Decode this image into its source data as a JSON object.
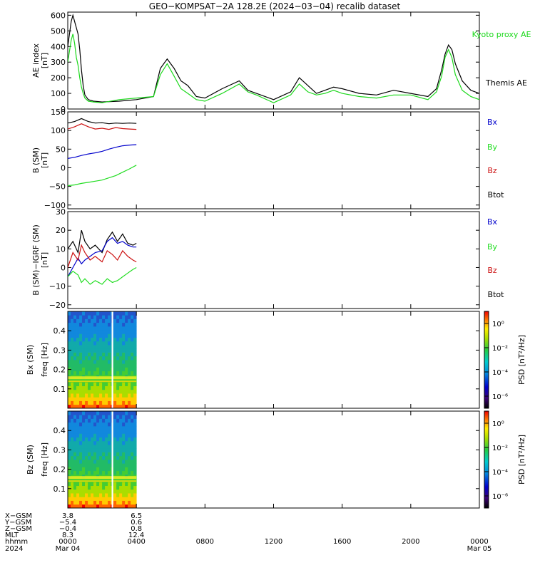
{
  "title": "GEO−KOMPSAT−2A 128.2E (2024−03−04) recalib dataset",
  "chart_data": [
    {
      "type": "line",
      "panel": "ae-index",
      "ylabel": "AE index",
      "yunit": "[nT]",
      "ylim": [
        0,
        620
      ],
      "yticks": [
        "0",
        "100",
        "200",
        "300",
        "400",
        "500",
        "600"
      ],
      "ytick_values": [
        0,
        100,
        200,
        300,
        400,
        500,
        600
      ],
      "series": [
        {
          "name": "Themis AE",
          "color": "#000000",
          "x": [
            0,
            0.1,
            0.2,
            0.3,
            0.4,
            0.5,
            0.6,
            0.7,
            0.8,
            0.9,
            1.0,
            1.2,
            1.5,
            2.0,
            3.0,
            4.0,
            5.0,
            5.4,
            5.8,
            6.2,
            6.6,
            7.0,
            7.5,
            8.0,
            9.0,
            10.0,
            10.5,
            11.0,
            12.0,
            13.0,
            13.5,
            14.0,
            14.5,
            15.0,
            15.5,
            16.0,
            17.0,
            18.0,
            19.0,
            20.0,
            21.0,
            21.5,
            21.8,
            22.0,
            22.2,
            22.4,
            22.6,
            23.0,
            23.5,
            24.0
          ],
          "y": [
            400,
            480,
            560,
            600,
            560,
            520,
            480,
            380,
            250,
            150,
            90,
            60,
            50,
            45,
            50,
            60,
            80,
            260,
            320,
            260,
            180,
            150,
            80,
            70,
            130,
            180,
            120,
            100,
            60,
            110,
            200,
            150,
            100,
            120,
            140,
            130,
            100,
            90,
            120,
            100,
            80,
            130,
            250,
            350,
            410,
            380,
            290,
            180,
            120,
            100
          ]
        },
        {
          "name": "Kyoto proxy AE",
          "color": "#1bd81b",
          "x": [
            0,
            0.1,
            0.2,
            0.3,
            0.4,
            0.5,
            0.6,
            0.7,
            0.8,
            0.9,
            1.0,
            1.2,
            1.5,
            2.0,
            3.0,
            4.0,
            5.0,
            5.4,
            5.8,
            6.2,
            6.6,
            7.0,
            7.5,
            8.0,
            9.0,
            10.0,
            10.5,
            11.0,
            12.0,
            13.0,
            13.5,
            14.0,
            14.5,
            15.0,
            15.5,
            16.0,
            17.0,
            18.0,
            19.0,
            20.0,
            21.0,
            21.5,
            21.8,
            22.0,
            22.2,
            22.4,
            22.6,
            23.0,
            23.5,
            24.0
          ],
          "y": [
            300,
            370,
            440,
            480,
            420,
            330,
            280,
            200,
            140,
            100,
            70,
            50,
            45,
            40,
            60,
            70,
            80,
            220,
            290,
            210,
            130,
            100,
            60,
            50,
            100,
            160,
            110,
            90,
            40,
            90,
            160,
            110,
            90,
            100,
            120,
            100,
            80,
            70,
            90,
            90,
            60,
            110,
            210,
            330,
            380,
            330,
            220,
            120,
            80,
            60
          ]
        }
      ]
    },
    {
      "type": "line",
      "panel": "b-sm",
      "ylabel": "B (SM)",
      "yunit": "[nT]",
      "ylim": [
        -110,
        150
      ],
      "yticks": [
        "−100",
        "−50",
        "0",
        "50",
        "100",
        "150"
      ],
      "ytick_values": [
        -100,
        -50,
        0,
        50,
        100,
        150
      ],
      "series": [
        {
          "name": "Btot",
          "color": "#000000",
          "x": [
            0,
            0.4,
            0.8,
            1.2,
            1.6,
            2.0,
            2.4,
            2.8,
            3.2,
            3.6,
            4.0
          ],
          "y": [
            120,
            124,
            132,
            124,
            120,
            121,
            118,
            120,
            119,
            120,
            119
          ]
        },
        {
          "name": "Bx",
          "color": "#0000cc",
          "x": [
            0,
            0.4,
            0.8,
            1.2,
            1.6,
            2.0,
            2.4,
            2.8,
            3.2,
            3.6,
            4.0
          ],
          "y": [
            25,
            28,
            33,
            37,
            40,
            44,
            50,
            55,
            59,
            61,
            62
          ]
        },
        {
          "name": "By",
          "color": "#22dd22",
          "x": [
            0,
            0.4,
            0.8,
            1.2,
            1.6,
            2.0,
            2.4,
            2.8,
            3.2,
            3.6,
            4.0
          ],
          "y": [
            -48,
            -46,
            -42,
            -39,
            -36,
            -33,
            -27,
            -21,
            -12,
            -3,
            7
          ]
        },
        {
          "name": "Bz",
          "color": "#cc1111",
          "x": [
            0,
            0.4,
            0.8,
            1.2,
            1.6,
            2.0,
            2.4,
            2.8,
            3.2,
            3.6,
            4.0
          ],
          "y": [
            104,
            110,
            118,
            110,
            104,
            106,
            103,
            108,
            105,
            104,
            103
          ]
        }
      ]
    },
    {
      "type": "line",
      "panel": "b-sm-igrf",
      "ylabel": "B (SM)−IGRF (SM)",
      "yunit": "[nT]",
      "ylim": [
        -22,
        30
      ],
      "yticks": [
        "−20",
        "−10",
        "0",
        "10",
        "20",
        "30"
      ],
      "ytick_values": [
        -20,
        -10,
        0,
        10,
        20,
        30
      ],
      "series": [
        {
          "name": "Btot",
          "color": "#000000",
          "x": [
            0,
            0.3,
            0.6,
            0.8,
            1.0,
            1.3,
            1.6,
            2.0,
            2.3,
            2.6,
            2.9,
            3.2,
            3.5,
            3.8,
            4.0
          ],
          "y": [
            10,
            14,
            8,
            20,
            14,
            10,
            12,
            8,
            15,
            19,
            14,
            18,
            13,
            12,
            13
          ]
        },
        {
          "name": "Bx",
          "color": "#0000cc",
          "x": [
            0,
            0.3,
            0.6,
            0.8,
            1.0,
            1.3,
            1.6,
            2.0,
            2.3,
            2.6,
            2.9,
            3.2,
            3.5,
            3.8,
            4.0
          ],
          "y": [
            -5,
            0,
            5,
            2,
            4,
            6,
            8,
            9,
            14,
            16,
            13,
            14,
            12,
            11,
            11
          ]
        },
        {
          "name": "By",
          "color": "#22dd22",
          "x": [
            0,
            0.3,
            0.6,
            0.8,
            1.0,
            1.3,
            1.6,
            2.0,
            2.3,
            2.6,
            2.9,
            3.2,
            3.5,
            3.8,
            4.0
          ],
          "y": [
            -5,
            -2,
            -4,
            -8,
            -6,
            -9,
            -7,
            -9,
            -6,
            -8,
            -7,
            -5,
            -3,
            -1,
            0
          ]
        },
        {
          "name": "Bz",
          "color": "#cc1111",
          "x": [
            0,
            0.3,
            0.6,
            0.8,
            1.0,
            1.3,
            1.6,
            2.0,
            2.3,
            2.6,
            2.9,
            3.2,
            3.5,
            3.8,
            4.0
          ],
          "y": [
            0,
            8,
            4,
            12,
            8,
            4,
            6,
            3,
            9,
            7,
            4,
            9,
            6,
            4,
            3
          ]
        }
      ]
    },
    {
      "type": "heatmap",
      "panel": "bx-spectrogram",
      "ylabel": "Bx (SM)",
      "ylabel2": "freq [Hz]",
      "ylim": [
        0,
        0.5
      ],
      "yticks": [
        "0.1",
        "0.2",
        "0.3",
        "0.4"
      ],
      "ytick_values": [
        0.1,
        0.2,
        0.3,
        0.4
      ],
      "data_xrange": [
        0,
        4
      ],
      "gap_x": 2.6,
      "colorbar_label": "PSD [nT²/Hz]",
      "colorbar_ticks": [
        "10⁰",
        "10⁻²",
        "10⁻⁴",
        "10⁻⁶"
      ],
      "colorbar_tick_values": [
        0,
        -2,
        -4,
        -6
      ],
      "colorbar_range": [
        -7,
        1
      ]
    },
    {
      "type": "heatmap",
      "panel": "bz-spectrogram",
      "ylabel": "Bz (SM)",
      "ylabel2": "freq [Hz]",
      "ylim": [
        0,
        0.5
      ],
      "yticks": [
        "0.1",
        "0.2",
        "0.3",
        "0.4"
      ],
      "ytick_values": [
        0.1,
        0.2,
        0.3,
        0.4
      ],
      "data_xrange": [
        0,
        4
      ],
      "gap_x": 2.6,
      "colorbar_label": "PSD [nT²/Hz]",
      "colorbar_ticks": [
        "10⁰",
        "10⁻²",
        "10⁻⁴",
        "10⁻⁶"
      ],
      "colorbar_tick_values": [
        0,
        -2,
        -4,
        -6
      ],
      "colorbar_range": [
        -7,
        1
      ]
    }
  ],
  "xaxis": {
    "xlim": [
      0,
      24
    ],
    "ticks": [
      {
        "x": 0,
        "top": "0000",
        "bottom": "Mar 04"
      },
      {
        "x": 4,
        "top": "0400",
        "bottom": ""
      },
      {
        "x": 8,
        "top": "0800",
        "bottom": ""
      },
      {
        "x": 12,
        "top": "1200",
        "bottom": ""
      },
      {
        "x": 16,
        "top": "1600",
        "bottom": ""
      },
      {
        "x": 20,
        "top": "2000",
        "bottom": ""
      },
      {
        "x": 24,
        "top": "0000",
        "bottom": "Mar 05"
      }
    ],
    "row_labels": [
      "X−GSM",
      "Y−GSM",
      "Z−GSM",
      "MLT",
      "hhmm",
      "2024"
    ],
    "orbit_columns": [
      {
        "x": 0,
        "values": [
          "3.8",
          "−5.4",
          "−0.4",
          "8.3"
        ]
      },
      {
        "x": 4,
        "values": [
          "6.5",
          "0.6",
          "0.8",
          "12.4"
        ]
      }
    ]
  }
}
